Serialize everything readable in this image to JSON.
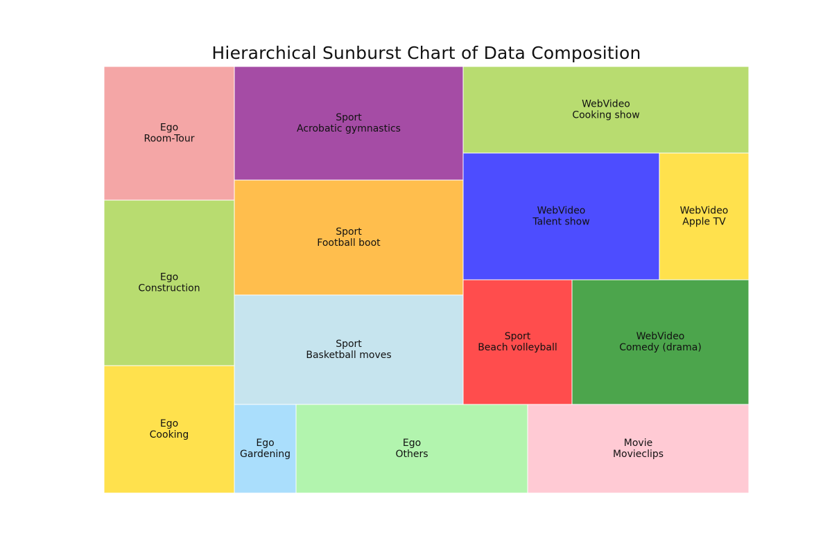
{
  "chart_data": {
    "type": "treemap",
    "title": "Hierarchical Sunburst Chart of Data Composition",
    "items": [
      {
        "group": "Ego",
        "name": "Room-Tour",
        "value": 3.6,
        "color": "#f4a6a6"
      },
      {
        "group": "Ego",
        "name": "Construction",
        "value": 4.5,
        "color": "#b8dc70"
      },
      {
        "group": "Ego",
        "name": "Cooking",
        "value": 3.5,
        "color": "#ffe14d"
      },
      {
        "group": "Sport",
        "name": "Acrobatic gymnastics",
        "value": 5.4,
        "color": "#a54ca5"
      },
      {
        "group": "Sport",
        "name": "Football boot",
        "value": 5.5,
        "color": "#ffbe4d"
      },
      {
        "group": "Sport",
        "name": "Basketball moves",
        "value": 5.2,
        "color": "#c6e4ee"
      },
      {
        "group": "Ego",
        "name": "Gardening",
        "value": 1.1,
        "color": "#aadefc"
      },
      {
        "group": "Ego",
        "name": "Others",
        "value": 4.3,
        "color": "#b2f4ae"
      },
      {
        "group": "Movie",
        "name": "Movieclips",
        "value": 4.1,
        "color": "#ffcad4"
      },
      {
        "group": "WebVideo",
        "name": "Cooking show",
        "value": 5.2,
        "color": "#b8dc70"
      },
      {
        "group": "WebVideo",
        "name": "Talent show",
        "value": 5.2,
        "color": "#4d4dff"
      },
      {
        "group": "WebVideo",
        "name": "Apple TV",
        "value": 2.4,
        "color": "#ffe14d"
      },
      {
        "group": "Sport",
        "name": "Beach volleyball",
        "value": 2.8,
        "color": "#ff4d4d"
      },
      {
        "group": "WebVideo",
        "name": "Comedy (drama)",
        "value": 4.6,
        "color": "#4ca54c"
      }
    ]
  }
}
